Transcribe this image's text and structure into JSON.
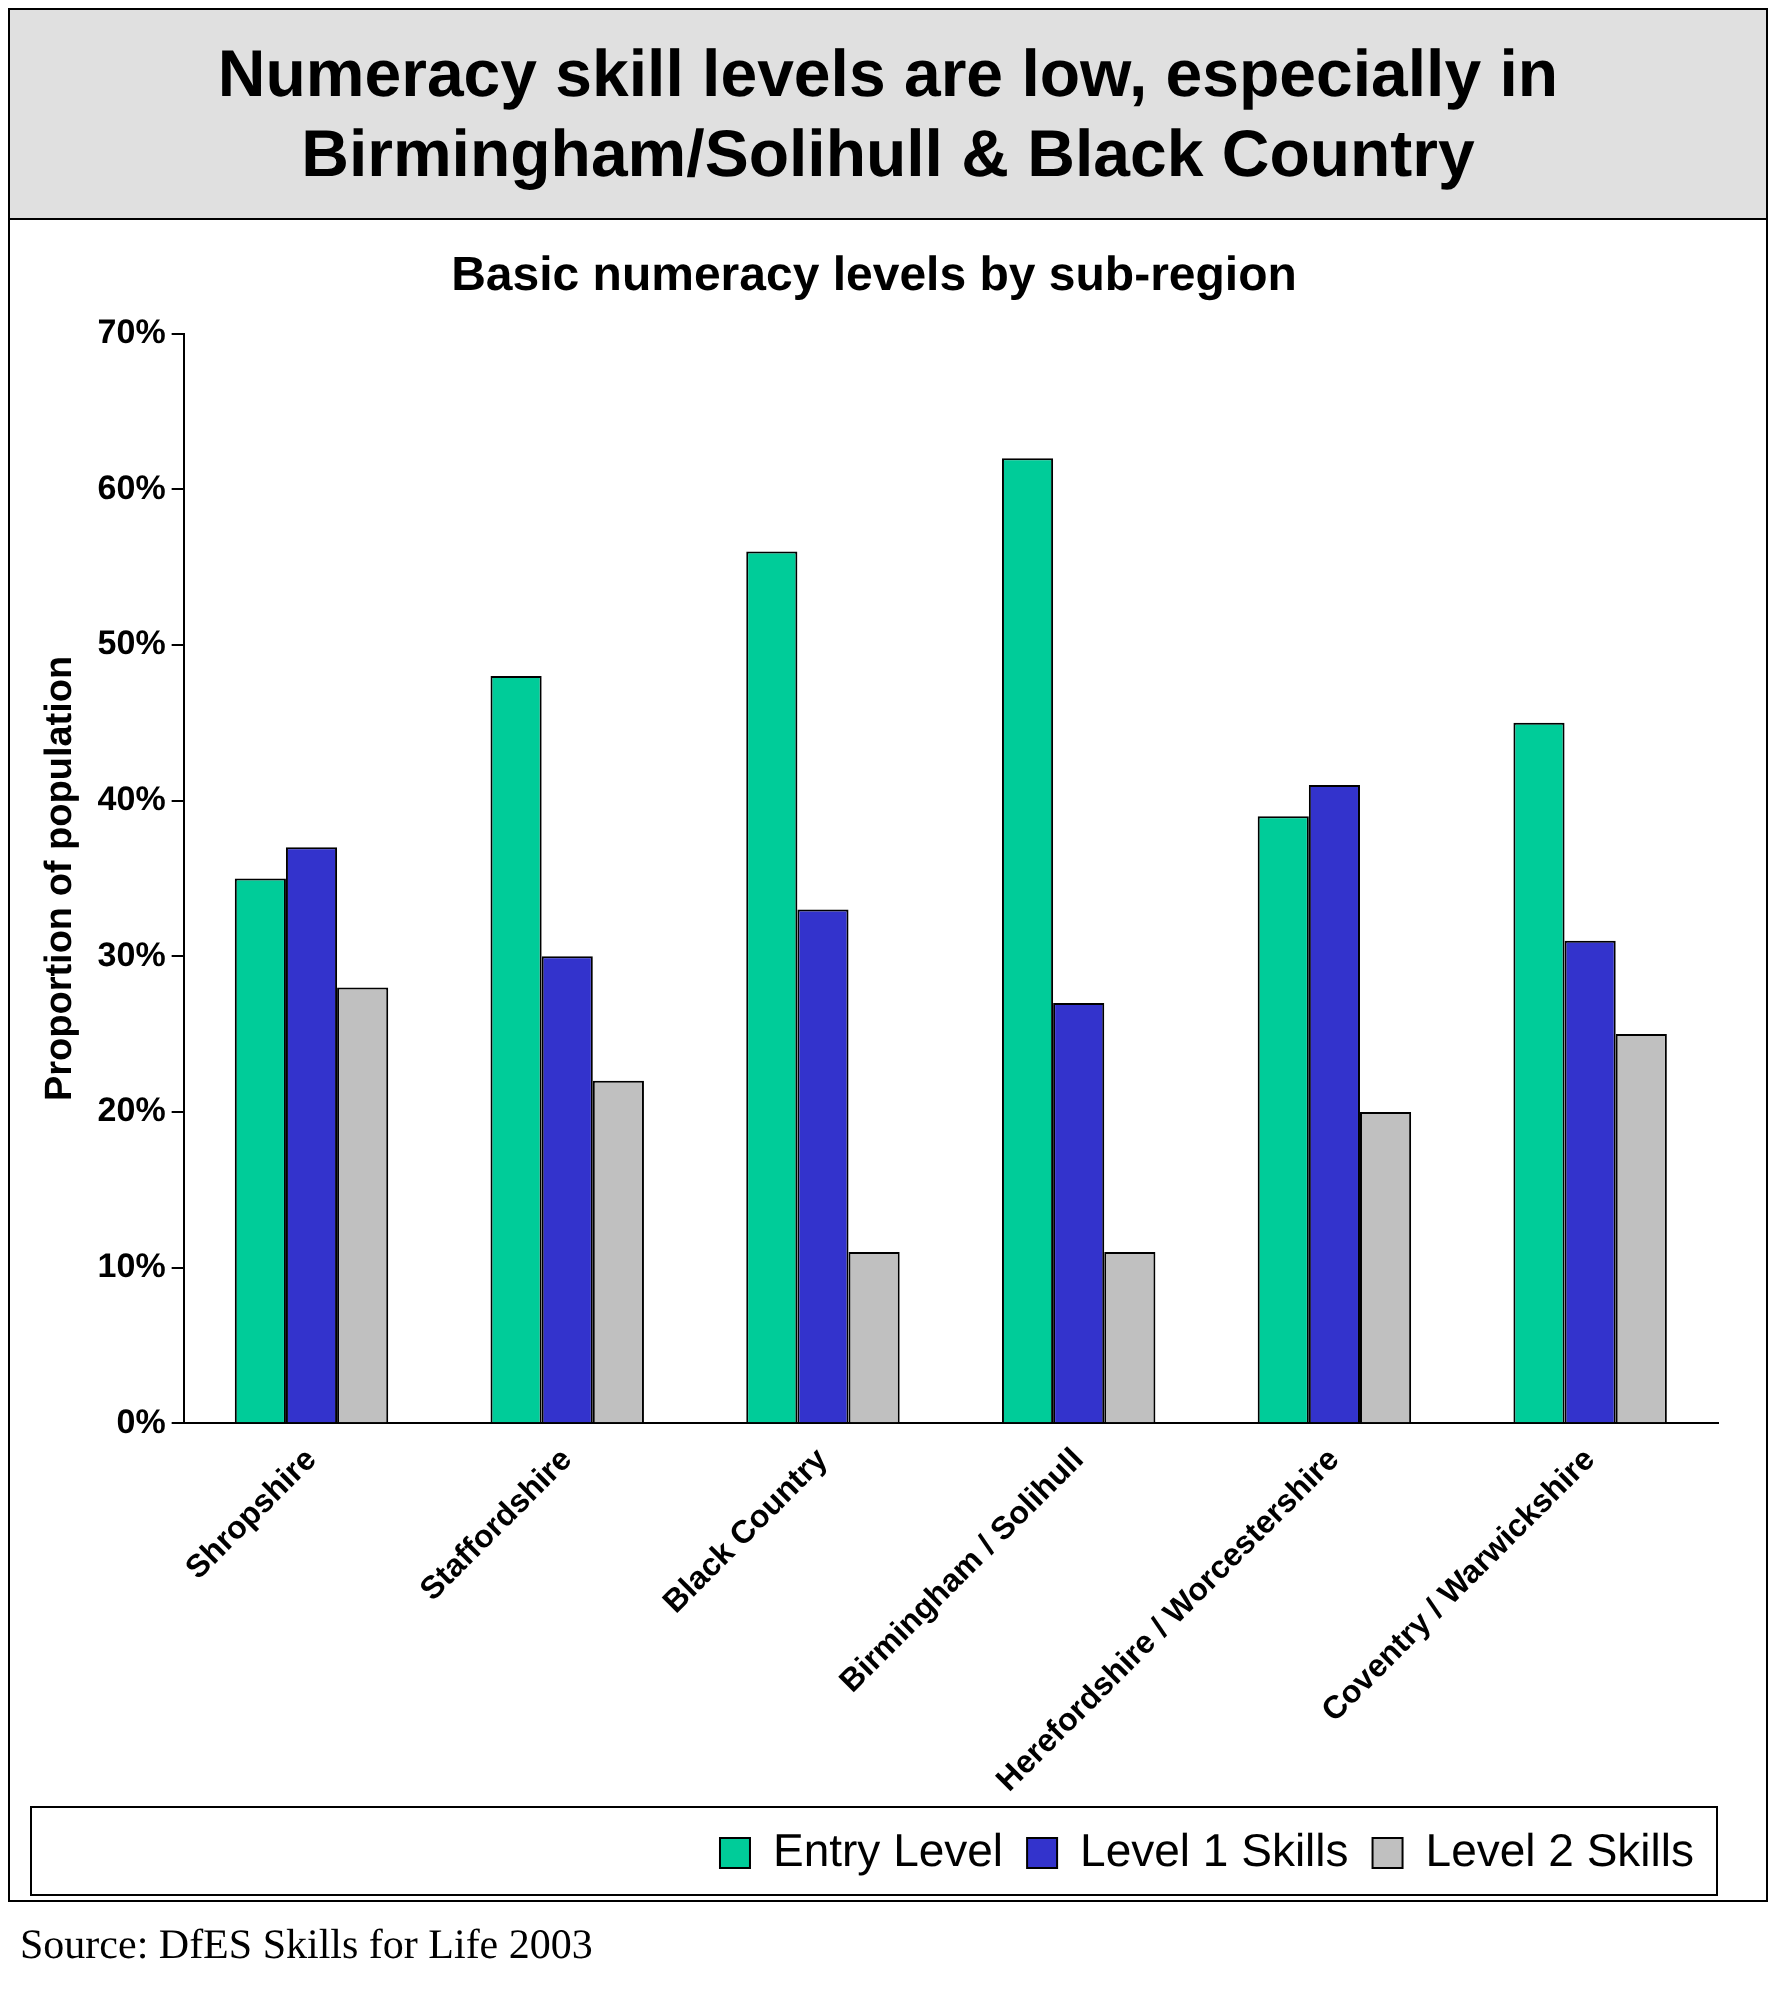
{
  "chart_data": {
    "type": "bar",
    "title": "Numeracy skill levels are low, especially in Birmingham/Solihull & Black Country",
    "subtitle": "Basic numeracy levels by sub-region",
    "ylabel": "Proportion of population",
    "categories": [
      "Shropshire",
      "Staffordshire",
      "Black Country",
      "Birmingham / Solihull",
      "Herefordshire / Worcestershire",
      "Coventry / Warwickshire"
    ],
    "series": [
      {
        "name": "Entry Level",
        "color": "#00cc99",
        "values": [
          35,
          48,
          56,
          62,
          39,
          45
        ]
      },
      {
        "name": "Level 1 Skills",
        "color": "#3333cc",
        "values": [
          37,
          30,
          33,
          27,
          41,
          31
        ]
      },
      {
        "name": "Level 2 Skills",
        "color": "#c0c0c0",
        "values": [
          28,
          22,
          11,
          11,
          20,
          25
        ]
      }
    ],
    "ylim": [
      0,
      70
    ],
    "yticks": [
      {
        "value": 0,
        "label": "0%"
      },
      {
        "value": 10,
        "label": "10%"
      },
      {
        "value": 20,
        "label": "20%"
      },
      {
        "value": 30,
        "label": "30%"
      },
      {
        "value": 40,
        "label": "40%"
      },
      {
        "value": 50,
        "label": "50%"
      },
      {
        "value": 60,
        "label": "60%"
      },
      {
        "value": 70,
        "label": "70%"
      }
    ],
    "grid": false,
    "legend": "bottom right",
    "annotations": [
      "Source: DfES Skills for Life 2003"
    ]
  }
}
